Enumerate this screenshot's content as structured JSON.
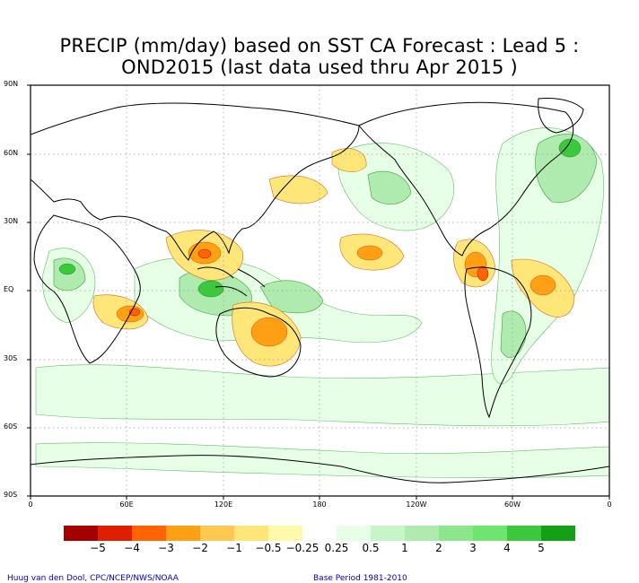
{
  "title": {
    "line1": "PRECIP (mm/day) based on SST CA Forecast : Lead 5 :",
    "line2": "OND2015 (last data used thru Apr 2015 )"
  },
  "axes": {
    "lat_labels": [
      "90N",
      "60N",
      "30N",
      "EQ",
      "30S",
      "60S",
      "90S"
    ],
    "lon_labels": [
      "0",
      "60E",
      "120E",
      "180",
      "120W",
      "60W",
      "0"
    ]
  },
  "legend": {
    "colors": [
      "#a50000",
      "#e01e00",
      "#ff6400",
      "#ffa014",
      "#ffc850",
      "#ffe678",
      "#fffaaa",
      "#ffffff",
      "#e6ffe6",
      "#c8f5c8",
      "#afebaf",
      "#8ce68c",
      "#6ee66e",
      "#3cc83c",
      "#14a014"
    ],
    "labels": [
      "−5",
      "−4",
      "−3",
      "−2",
      "−1",
      "−0.5",
      "−0.25",
      "0.25",
      "0.5",
      "1",
      "2",
      "3",
      "4",
      "5"
    ]
  },
  "footer": {
    "left": "Huug van den Dool, CPC/NCEP/NWS/NOAA",
    "right": "Base Period 1981-2010"
  }
}
